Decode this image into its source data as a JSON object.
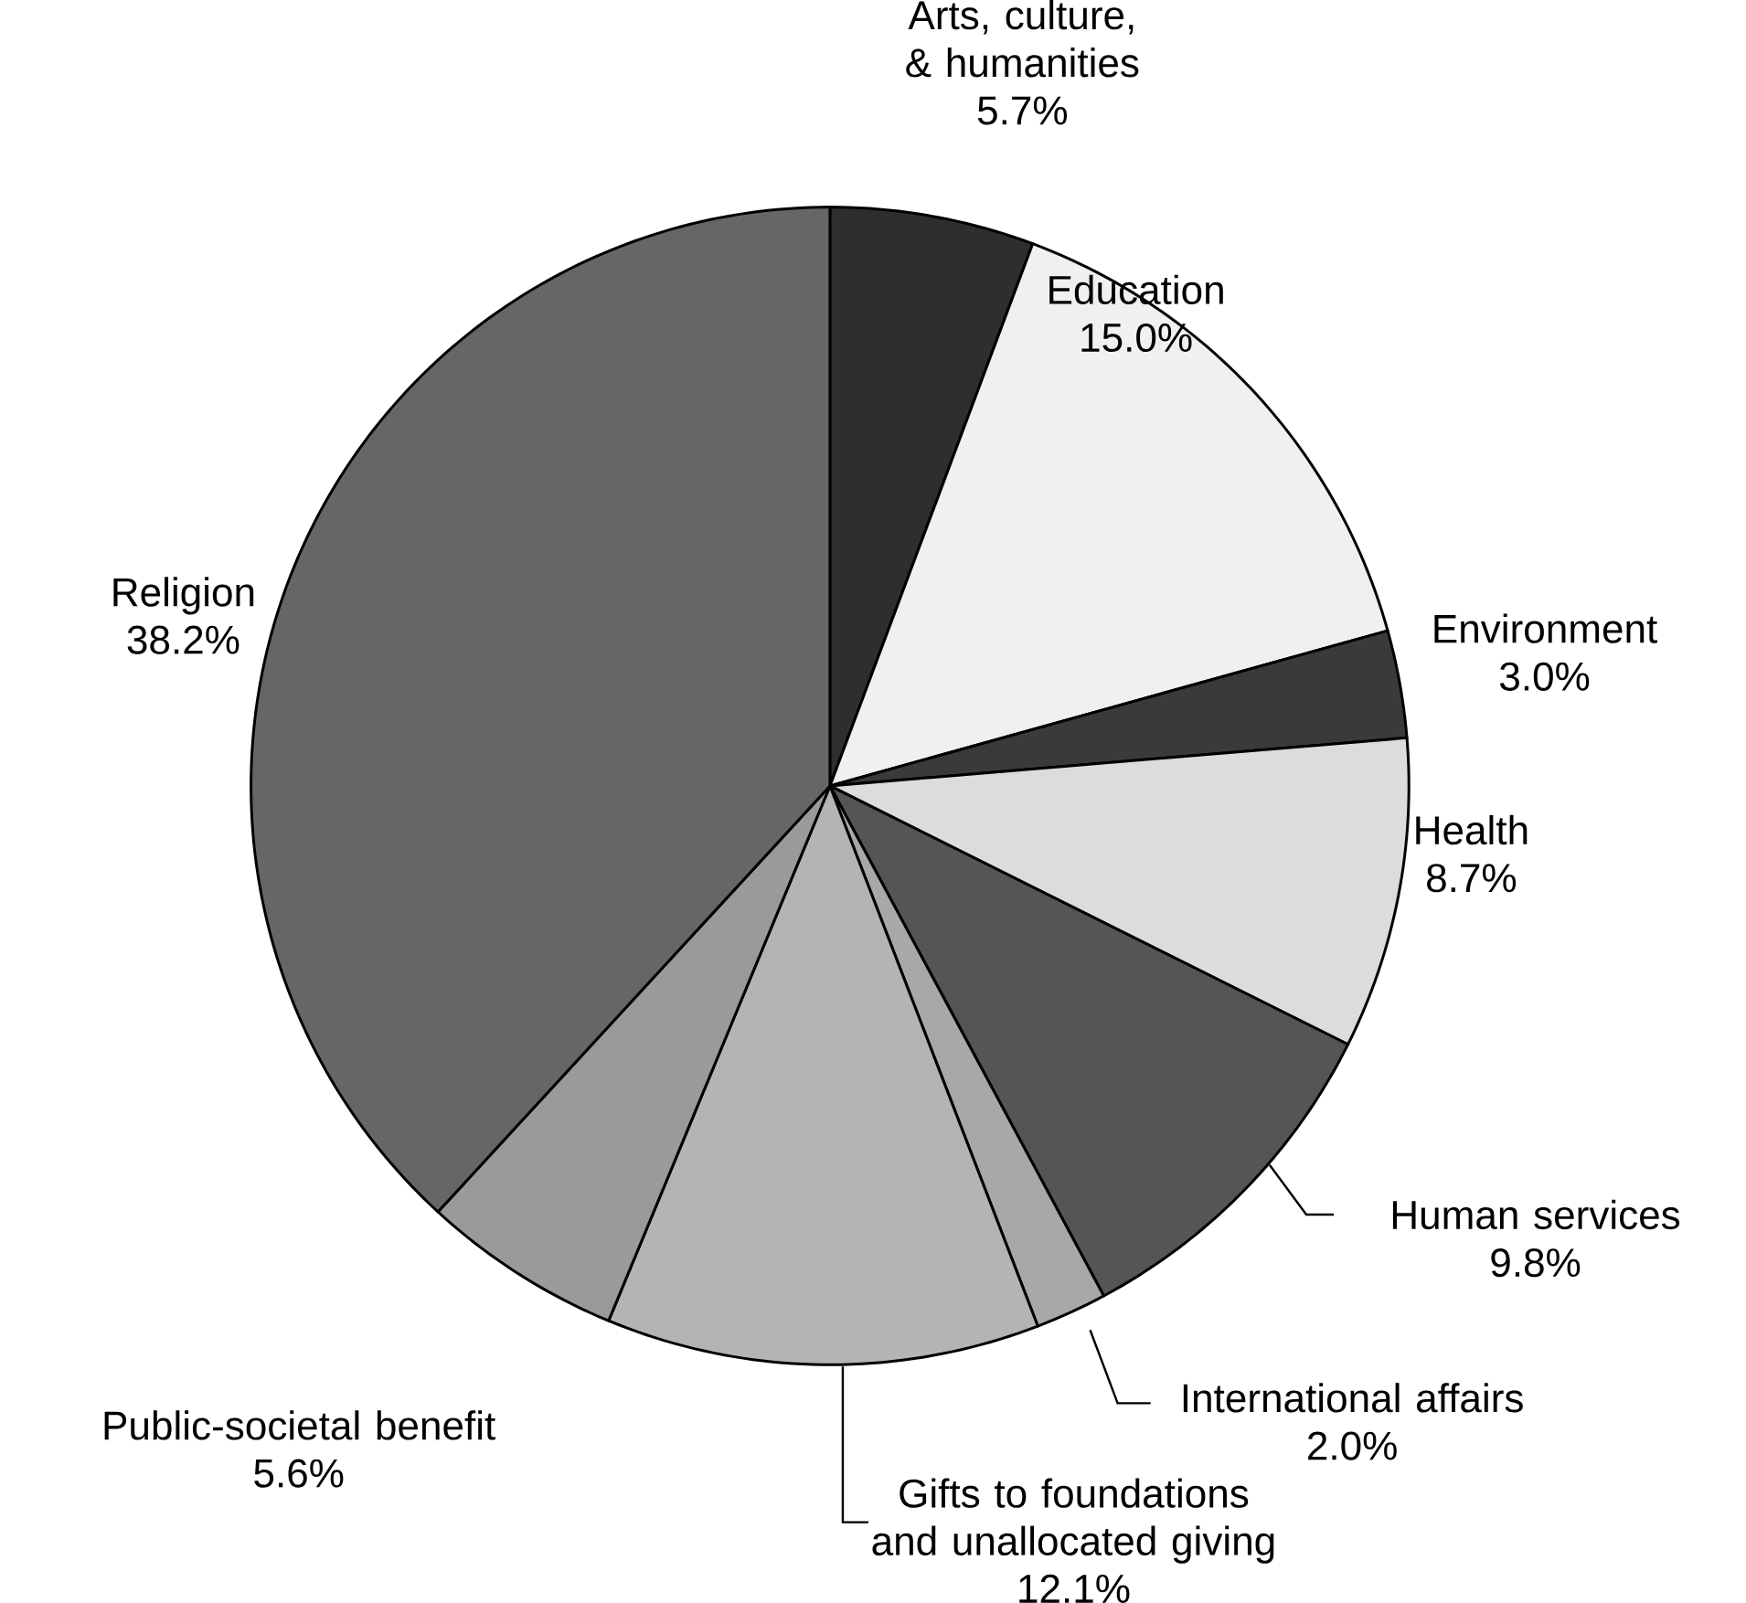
{
  "chart_data": {
    "type": "pie",
    "categories": [
      "Arts, culture, & humanities",
      "Education",
      "Environment",
      "Health",
      "Human services",
      "International affairs",
      "Gifts to foundations and unallocated giving",
      "Public-societal benefit",
      "Religion"
    ],
    "values": [
      5.7,
      15.0,
      3.0,
      8.7,
      9.8,
      2.0,
      12.1,
      5.6,
      38.2
    ],
    "value_labels": [
      "5.7%",
      "15.0%",
      "3.0%",
      "8.7%",
      "9.8%",
      "2.0%",
      "12.1%",
      "5.6%",
      "38.2%"
    ],
    "colors": [
      "#2e2e2e",
      "#f0f0f0",
      "#3a3a3a",
      "#dcdcdc",
      "#555555",
      "#a8a8a8",
      "#b4b4b4",
      "#9a9a9a",
      "#666666"
    ]
  }
}
